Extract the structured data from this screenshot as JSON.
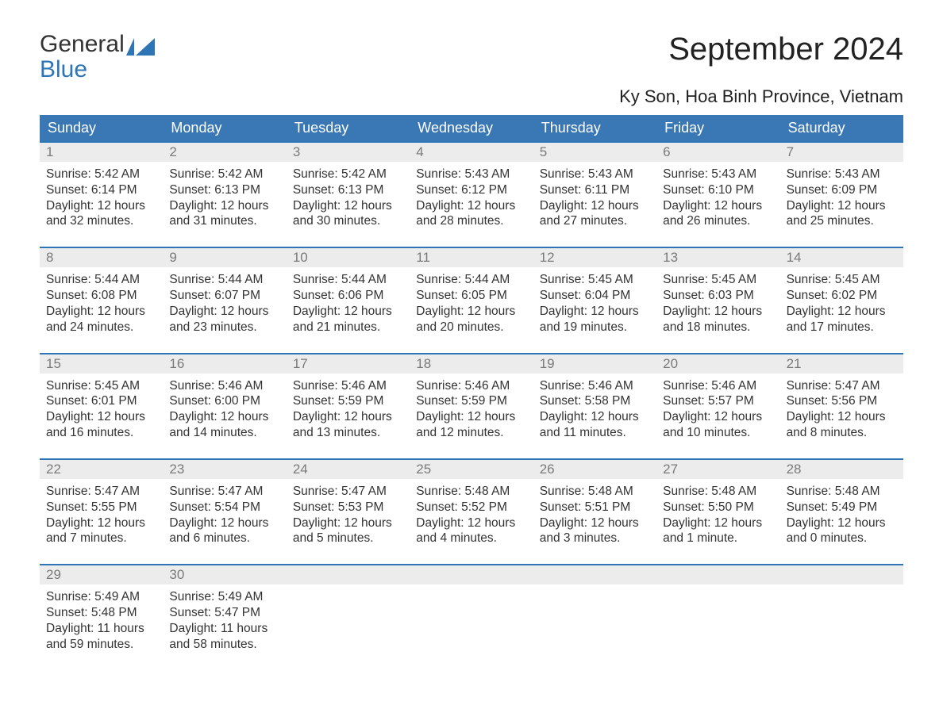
{
  "logo": {
    "line1": "General",
    "line2": "Blue",
    "flag_color": "#2e75b6"
  },
  "title": "September 2024",
  "location": "Ky Son, Hoa Binh Province, Vietnam",
  "colors": {
    "header_bg": "#3a78b5",
    "header_text": "#ffffff",
    "week_border": "#2e75b6",
    "daynum_bg": "#ececec",
    "daynum_text": "#7a7a7a",
    "body_text": "#333333",
    "page_bg": "#ffffff"
  },
  "weekdays": [
    "Sunday",
    "Monday",
    "Tuesday",
    "Wednesday",
    "Thursday",
    "Friday",
    "Saturday"
  ],
  "weeks": [
    [
      {
        "n": "1",
        "sunrise": "5:42 AM",
        "sunset": "6:14 PM",
        "daylight": "12 hours and 32 minutes."
      },
      {
        "n": "2",
        "sunrise": "5:42 AM",
        "sunset": "6:13 PM",
        "daylight": "12 hours and 31 minutes."
      },
      {
        "n": "3",
        "sunrise": "5:42 AM",
        "sunset": "6:13 PM",
        "daylight": "12 hours and 30 minutes."
      },
      {
        "n": "4",
        "sunrise": "5:43 AM",
        "sunset": "6:12 PM",
        "daylight": "12 hours and 28 minutes."
      },
      {
        "n": "5",
        "sunrise": "5:43 AM",
        "sunset": "6:11 PM",
        "daylight": "12 hours and 27 minutes."
      },
      {
        "n": "6",
        "sunrise": "5:43 AM",
        "sunset": "6:10 PM",
        "daylight": "12 hours and 26 minutes."
      },
      {
        "n": "7",
        "sunrise": "5:43 AM",
        "sunset": "6:09 PM",
        "daylight": "12 hours and 25 minutes."
      }
    ],
    [
      {
        "n": "8",
        "sunrise": "5:44 AM",
        "sunset": "6:08 PM",
        "daylight": "12 hours and 24 minutes."
      },
      {
        "n": "9",
        "sunrise": "5:44 AM",
        "sunset": "6:07 PM",
        "daylight": "12 hours and 23 minutes."
      },
      {
        "n": "10",
        "sunrise": "5:44 AM",
        "sunset": "6:06 PM",
        "daylight": "12 hours and 21 minutes."
      },
      {
        "n": "11",
        "sunrise": "5:44 AM",
        "sunset": "6:05 PM",
        "daylight": "12 hours and 20 minutes."
      },
      {
        "n": "12",
        "sunrise": "5:45 AM",
        "sunset": "6:04 PM",
        "daylight": "12 hours and 19 minutes."
      },
      {
        "n": "13",
        "sunrise": "5:45 AM",
        "sunset": "6:03 PM",
        "daylight": "12 hours and 18 minutes."
      },
      {
        "n": "14",
        "sunrise": "5:45 AM",
        "sunset": "6:02 PM",
        "daylight": "12 hours and 17 minutes."
      }
    ],
    [
      {
        "n": "15",
        "sunrise": "5:45 AM",
        "sunset": "6:01 PM",
        "daylight": "12 hours and 16 minutes."
      },
      {
        "n": "16",
        "sunrise": "5:46 AM",
        "sunset": "6:00 PM",
        "daylight": "12 hours and 14 minutes."
      },
      {
        "n": "17",
        "sunrise": "5:46 AM",
        "sunset": "5:59 PM",
        "daylight": "12 hours and 13 minutes."
      },
      {
        "n": "18",
        "sunrise": "5:46 AM",
        "sunset": "5:59 PM",
        "daylight": "12 hours and 12 minutes."
      },
      {
        "n": "19",
        "sunrise": "5:46 AM",
        "sunset": "5:58 PM",
        "daylight": "12 hours and 11 minutes."
      },
      {
        "n": "20",
        "sunrise": "5:46 AM",
        "sunset": "5:57 PM",
        "daylight": "12 hours and 10 minutes."
      },
      {
        "n": "21",
        "sunrise": "5:47 AM",
        "sunset": "5:56 PM",
        "daylight": "12 hours and 8 minutes."
      }
    ],
    [
      {
        "n": "22",
        "sunrise": "5:47 AM",
        "sunset": "5:55 PM",
        "daylight": "12 hours and 7 minutes."
      },
      {
        "n": "23",
        "sunrise": "5:47 AM",
        "sunset": "5:54 PM",
        "daylight": "12 hours and 6 minutes."
      },
      {
        "n": "24",
        "sunrise": "5:47 AM",
        "sunset": "5:53 PM",
        "daylight": "12 hours and 5 minutes."
      },
      {
        "n": "25",
        "sunrise": "5:48 AM",
        "sunset": "5:52 PM",
        "daylight": "12 hours and 4 minutes."
      },
      {
        "n": "26",
        "sunrise": "5:48 AM",
        "sunset": "5:51 PM",
        "daylight": "12 hours and 3 minutes."
      },
      {
        "n": "27",
        "sunrise": "5:48 AM",
        "sunset": "5:50 PM",
        "daylight": "12 hours and 1 minute."
      },
      {
        "n": "28",
        "sunrise": "5:48 AM",
        "sunset": "5:49 PM",
        "daylight": "12 hours and 0 minutes."
      }
    ],
    [
      {
        "n": "29",
        "sunrise": "5:49 AM",
        "sunset": "5:48 PM",
        "daylight": "11 hours and 59 minutes."
      },
      {
        "n": "30",
        "sunrise": "5:49 AM",
        "sunset": "5:47 PM",
        "daylight": "11 hours and 58 minutes."
      },
      null,
      null,
      null,
      null,
      null
    ]
  ],
  "labels": {
    "sunrise": "Sunrise: ",
    "sunset": "Sunset: ",
    "daylight": "Daylight: "
  }
}
